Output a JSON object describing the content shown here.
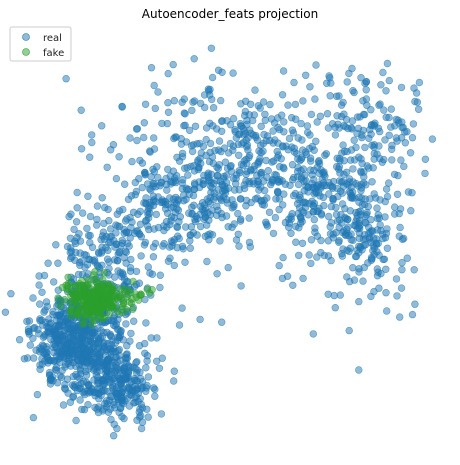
{
  "chart_data": {
    "type": "scatter",
    "title": "Autoencoder_feats projection",
    "xlabel": "",
    "ylabel": "",
    "axes_visible": false,
    "grid": false,
    "legend_placement": "top-left",
    "xlim": [
      -4.0,
      4.0
    ],
    "ylim": [
      -3.6,
      3.6
    ],
    "series": [
      {
        "name": "real",
        "color": "#1f77b4",
        "alpha": 0.5,
        "clusters": [
          {
            "center": [
              -2.95,
              -1.85
            ],
            "spread": [
              0.45,
              0.45
            ],
            "count": 620
          },
          {
            "center": [
              -2.2,
              -2.65
            ],
            "spread": [
              0.35,
              0.3
            ],
            "count": 220
          },
          {
            "center": [
              -2.35,
              -0.35
            ],
            "spread": [
              0.45,
              0.5
            ],
            "count": 170
          },
          {
            "center": [
              -1.2,
              0.55
            ],
            "spread": [
              0.65,
              0.55
            ],
            "count": 230
          },
          {
            "center": [
              0.2,
              1.15
            ],
            "spread": [
              0.75,
              0.5
            ],
            "count": 240
          },
          {
            "center": [
              1.75,
              0.75
            ],
            "spread": [
              0.55,
              0.6
            ],
            "count": 170
          },
          {
            "center": [
              2.65,
              0.05
            ],
            "spread": [
              0.45,
              0.6
            ],
            "count": 170
          },
          {
            "center": [
              0.3,
              2.15
            ],
            "spread": [
              1.45,
              0.45
            ],
            "count": 160
          },
          {
            "center": [
              2.6,
              1.85
            ],
            "spread": [
              0.55,
              0.55
            ],
            "count": 110
          }
        ],
        "sample_points": [
          [
            -0.38,
            3.38
          ],
          [
            1.45,
            2.9
          ],
          [
            2.35,
            3.02
          ],
          [
            2.95,
            2.95
          ],
          [
            3.62,
            2.42
          ],
          [
            -1.22,
            2.93
          ],
          [
            -0.95,
            2.42
          ],
          [
            -0.18,
            2.08
          ],
          [
            3.12,
            1.58
          ],
          [
            2.72,
            1.85
          ],
          [
            -0.8,
            -0.05
          ],
          [
            -1.0,
            -1.55
          ],
          [
            -0.6,
            -1.45
          ],
          [
            -0.95,
            -1.25
          ],
          [
            -2.35,
            0.02
          ],
          [
            -1.55,
            -1.78
          ],
          [
            -1.82,
            -2.55
          ],
          [
            -2.45,
            -2.95
          ],
          [
            -2.6,
            -3.05
          ],
          [
            -0.18,
            -1.5
          ],
          [
            1.0,
            -0.72
          ],
          [
            1.1,
            -0.68
          ],
          [
            1.4,
            -0.72
          ],
          [
            2.1,
            -0.05
          ]
        ]
      },
      {
        "name": "fake",
        "color": "#2ca02c",
        "alpha": 0.5,
        "clusters": [
          {
            "center": [
              -2.65,
              -1.1
            ],
            "spread": [
              0.28,
              0.17
            ],
            "count": 260
          },
          {
            "center": [
              -1.95,
              -1.02
            ],
            "spread": [
              0.25,
              0.1
            ],
            "count": 20
          }
        ],
        "sample_points": [
          [
            -2.1,
            -1.22
          ],
          [
            -1.75,
            -1.0
          ],
          [
            -1.58,
            -0.98
          ]
        ]
      }
    ]
  }
}
